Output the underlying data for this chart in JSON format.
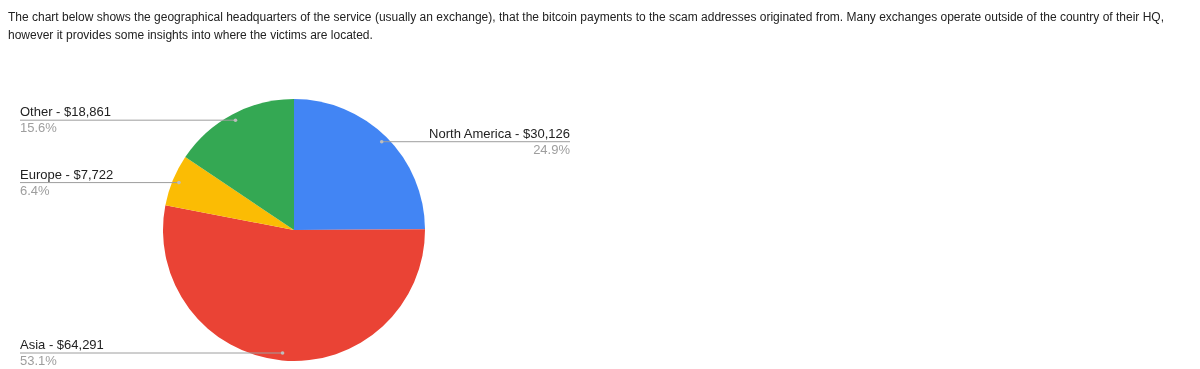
{
  "chart_data": {
    "type": "pie",
    "title": "The chart below shows the geographical headquarters of the service (usually an exchange), that the bitcoin payments to the scam addresses originated from. Many exchanges operate outside of the country of their HQ, however it provides some insights into where the victims are located.",
    "categories": [
      "North America",
      "Asia",
      "Europe",
      "Other"
    ],
    "values": [
      30126,
      64291,
      7722,
      18861
    ],
    "colors": [
      "#4285f4",
      "#ea4335",
      "#fbbc04",
      "#34a853"
    ],
    "value_labels": [
      "$30,126",
      "$64,291",
      "$7,722",
      "$18,861"
    ],
    "annotations": [
      "24.9%",
      "53.1%",
      "6.4%",
      "15.6%"
    ],
    "legend": false
  }
}
